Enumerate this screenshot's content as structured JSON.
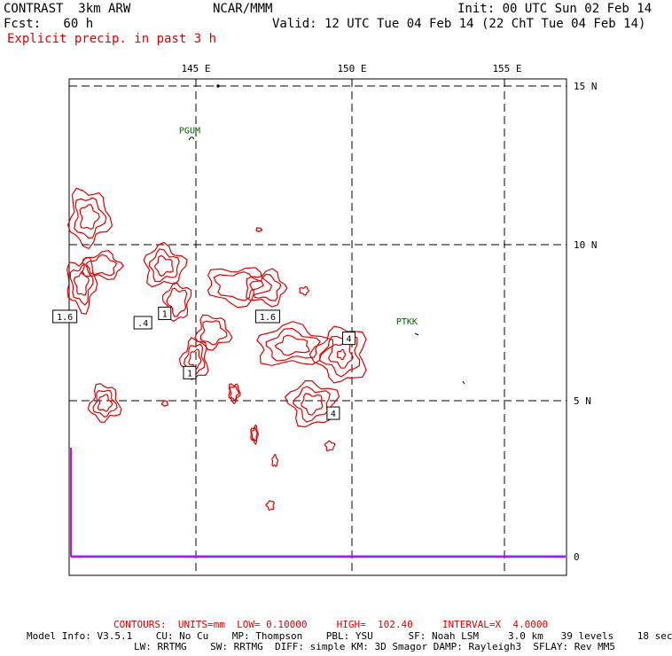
{
  "header": {
    "model": "CONTRAST  3km ARW",
    "forecast": "Fcst:   60 h",
    "field": "Explicit precip. in past 3 h",
    "org": "NCAR/MMM",
    "init": "Init: 00 UTC Sun 02 Feb 14",
    "valid": "Valid: 12 UTC Tue 04 Feb 14 (22 ChT Tue 04 Feb 14)"
  },
  "map": {
    "lon_labels": [
      "145 E",
      "150 E",
      "155 E"
    ],
    "lat_labels": [
      "15 N",
      "10 N",
      "5 N"
    ],
    "y_axis_zero": "0",
    "stations": [
      {
        "name": "PGUM",
        "lon": 144.8,
        "lat": 13.5
      },
      {
        "name": "PTKK",
        "lon": 151.8,
        "lat": 7.45
      }
    ],
    "contour_labels": [
      {
        "text": "1.6",
        "lon": 140.8,
        "lat": 7.7
      },
      {
        "text": ".4",
        "lon": 143.3,
        "lat": 7.5
      },
      {
        "text": "1",
        "lon": 144.0,
        "lat": 7.8
      },
      {
        "text": "1.6",
        "lon": 147.3,
        "lat": 7.7
      },
      {
        "text": "4",
        "lon": 149.9,
        "lat": 7.0
      },
      {
        "text": "1",
        "lon": 144.8,
        "lat": 5.9
      },
      {
        "text": "4",
        "lon": 149.4,
        "lat": 4.6
      }
    ],
    "colors": {
      "precip_contour": "#e00000",
      "station_label": "#006400",
      "trace": "#e000e0",
      "grid": "#000000"
    }
  },
  "footer": {
    "contours": "CONTOURS:  UNITS=mm  LOW= 0.10000     HIGH=  102.40     INTERVAL=X  4.0000",
    "line1": "Model Info: V3.5.1    CU: No Cu    MP: Thompson    PBL: YSU      SF: Noah LSM     3.0 km   39 levels    18 sec",
    "line2": "LW: RRTMG    SW: RRTMG  DIFF: simple KM: 3D Smagor DAMP: Rayleigh3  SFLAY: Rev MM5"
  }
}
